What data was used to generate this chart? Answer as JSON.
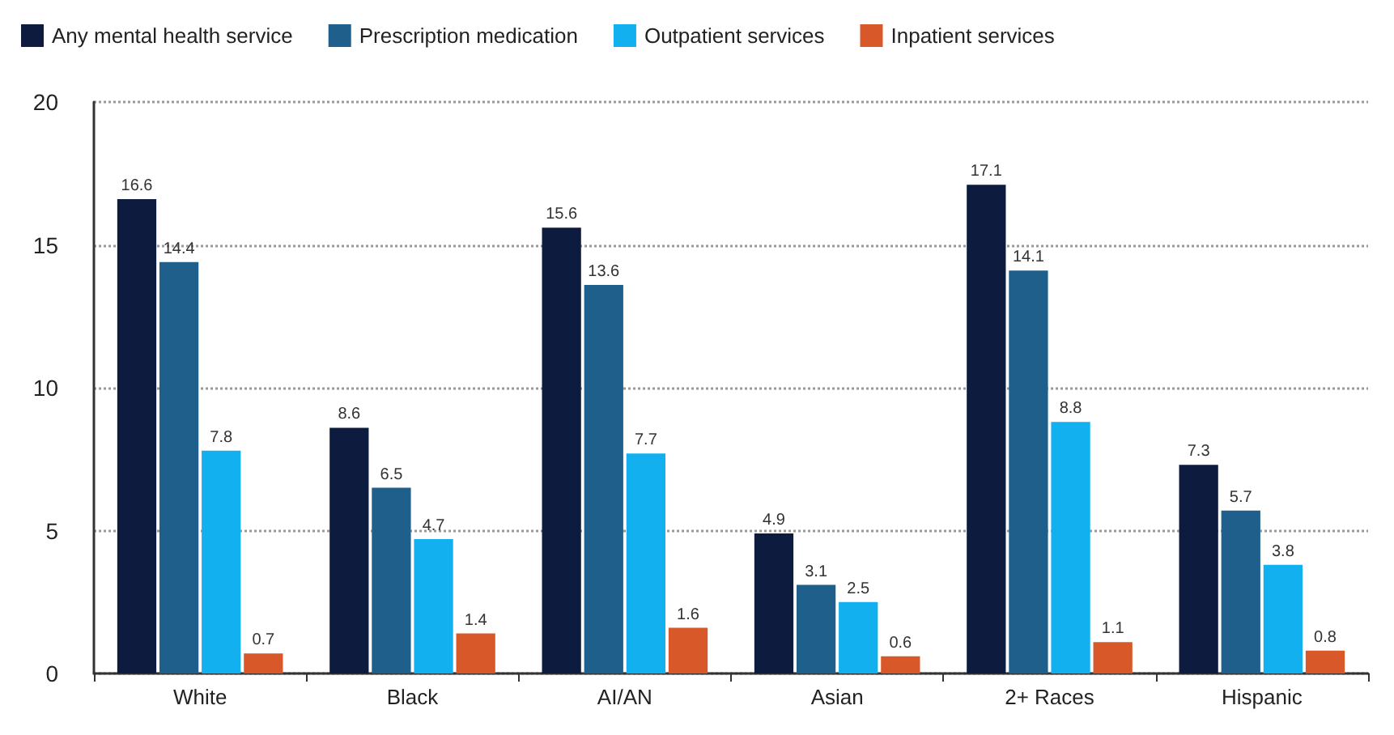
{
  "chart_data": {
    "type": "bar",
    "categories": [
      "White",
      "Black",
      "AI/AN",
      "Asian",
      "2+ Races",
      "Hispanic"
    ],
    "series": [
      {
        "name": "Any mental health service",
        "color": "#0d1b3e",
        "values": [
          16.6,
          8.6,
          15.6,
          4.9,
          17.1,
          7.3
        ]
      },
      {
        "name": "Prescription medication",
        "color": "#1f5f8b",
        "values": [
          14.4,
          6.5,
          13.6,
          3.1,
          14.1,
          5.7
        ]
      },
      {
        "name": "Outpatient services",
        "color": "#12b0ee",
        "values": [
          7.8,
          4.7,
          7.7,
          2.5,
          8.8,
          3.8
        ]
      },
      {
        "name": "Inpatient services",
        "color": "#d9582a",
        "values": [
          0.7,
          1.4,
          1.6,
          0.6,
          1.1,
          0.8
        ]
      }
    ],
    "ylim": [
      0,
      20
    ],
    "yticks": [
      0,
      5,
      10,
      15,
      20
    ],
    "grid": "y",
    "legend": "top left",
    "data_labels": true
  }
}
